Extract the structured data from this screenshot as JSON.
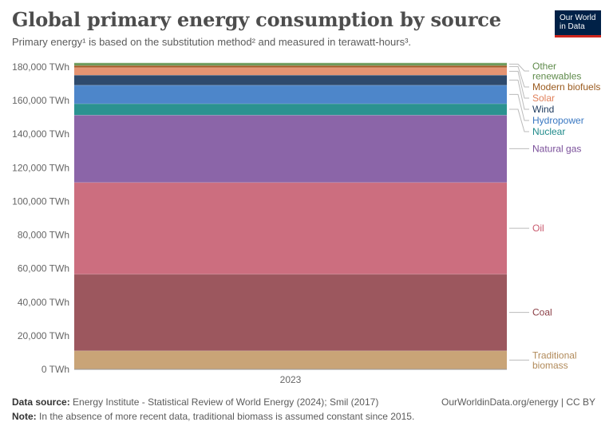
{
  "header": {
    "title": "Global primary energy consumption by source",
    "subtitle": "Primary energy¹ is based on the substitution method² and measured in terawatt-hours³.",
    "logo_line1": "Our World",
    "logo_line2": "in Data"
  },
  "footer": {
    "source_label": "Data source:",
    "source_text": "Energy Institute - Statistical Review of World Energy (2024); Smil (2017)",
    "note_label": "Note:",
    "note_text": "In the absence of more recent data, traditional biomass is assumed constant since 2015.",
    "credit": "OurWorldinData.org/energy | CC BY"
  },
  "chart_data": {
    "type": "area",
    "stacked": true,
    "x": [
      "2023"
    ],
    "ylim": [
      0,
      180000
    ],
    "yticks": [
      0,
      20000,
      40000,
      60000,
      80000,
      100000,
      120000,
      140000,
      160000,
      180000
    ],
    "ytick_labels": [
      "0 TWh",
      "20,000 TWh",
      "40,000 TWh",
      "60,000 TWh",
      "80,000 TWh",
      "100,000 TWh",
      "120,000 TWh",
      "140,000 TWh",
      "160,000 TWh",
      "180,000 TWh"
    ],
    "series": [
      {
        "name": "Traditional biomass",
        "label_lines": [
          "Traditional",
          "biomass"
        ],
        "values": [
          11100
        ],
        "color": "#c9a477",
        "text_color": "#b18a5a"
      },
      {
        "name": "Coal",
        "label_lines": [
          "Coal"
        ],
        "values": [
          45600
        ],
        "color": "#9c575e",
        "text_color": "#8b3f46"
      },
      {
        "name": "Oil",
        "label_lines": [
          "Oil"
        ],
        "values": [
          54600
        ],
        "color": "#cc6e7f",
        "text_color": "#c95a6e"
      },
      {
        "name": "Natural gas",
        "label_lines": [
          "Natural gas"
        ],
        "values": [
          40100
        ],
        "color": "#8b65a8",
        "text_color": "#7a4f9a"
      },
      {
        "name": "Nuclear",
        "label_lines": [
          "Nuclear"
        ],
        "values": [
          6800
        ],
        "color": "#2b9290",
        "text_color": "#1f8a8a"
      },
      {
        "name": "Hydropower",
        "label_lines": [
          "Hydropower"
        ],
        "values": [
          11000
        ],
        "color": "#4d86ca",
        "text_color": "#3a78c2"
      },
      {
        "name": "Wind",
        "label_lines": [
          "Wind"
        ],
        "values": [
          6000
        ],
        "color": "#2e4a6d",
        "text_color": "#1d3a5e"
      },
      {
        "name": "Solar",
        "label_lines": [
          "Solar"
        ],
        "values": [
          4500
        ],
        "color": "#e59472",
        "text_color": "#e0805a"
      },
      {
        "name": "Modern biofuels",
        "label_lines": [
          "Modern biofuels"
        ],
        "values": [
          1200
        ],
        "color": "#a35a24",
        "text_color": "#9a5a1e"
      },
      {
        "name": "Other renewables",
        "label_lines": [
          "Other",
          "renewables"
        ],
        "values": [
          1600
        ],
        "color": "#6e9b5b",
        "text_color": "#5e8a4a"
      }
    ]
  }
}
